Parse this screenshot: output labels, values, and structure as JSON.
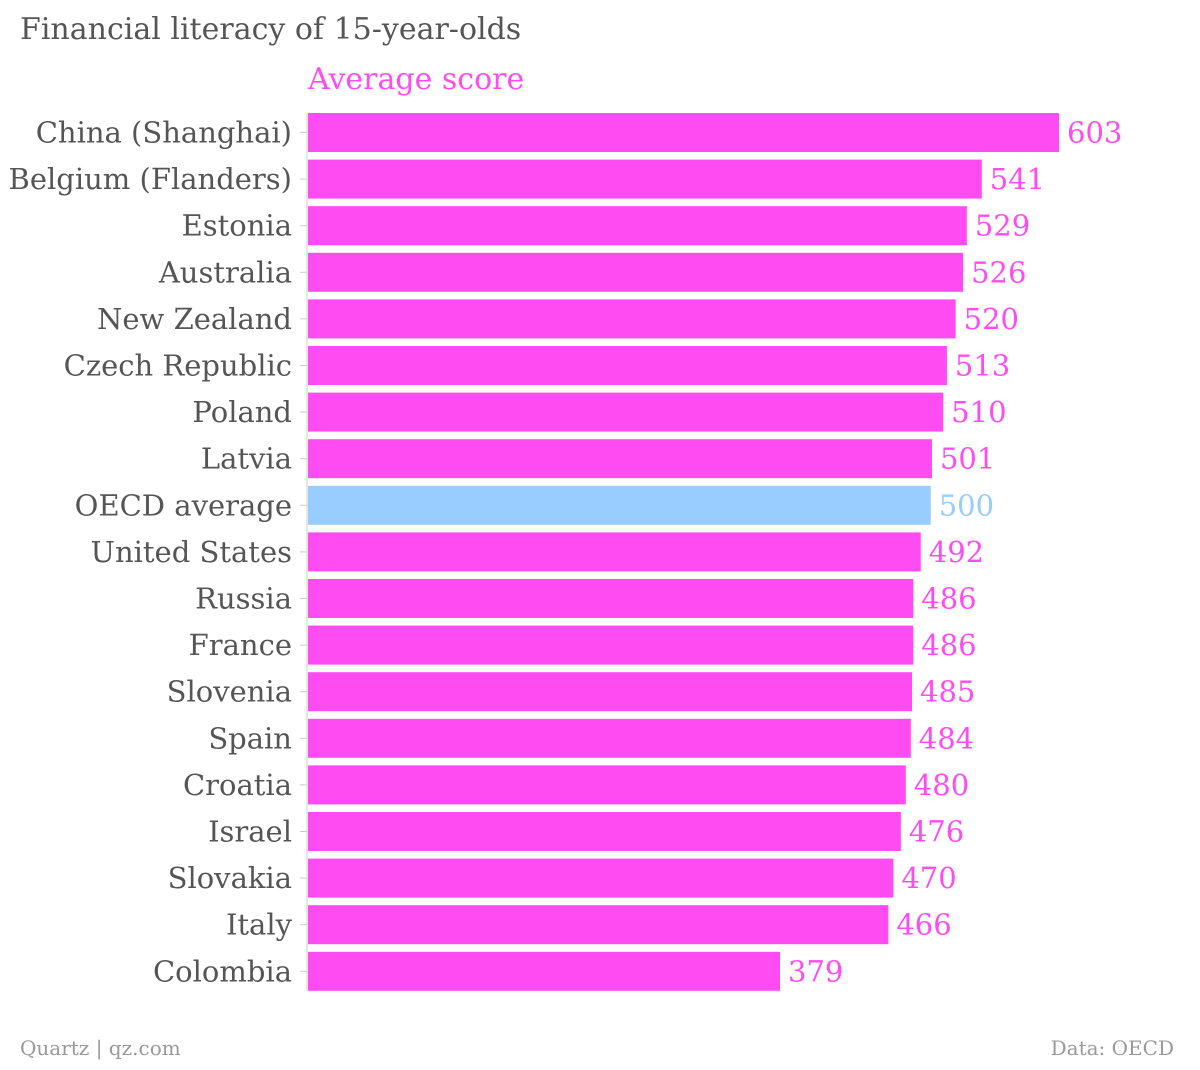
{
  "title": "Financial literacy of 15-year-olds",
  "series_label": "Average score",
  "colors": {
    "bar": "#ff4cf2",
    "highlight": "#99ccff",
    "axis": "#cccccc",
    "text": "#555555",
    "footer": "#999999"
  },
  "footer": {
    "source_left": "Quartz | qz.com",
    "source_right": "Data: OECD"
  },
  "chart_data": {
    "type": "bar",
    "orientation": "horizontal",
    "title": "Financial literacy of 15-year-olds",
    "series": [
      {
        "name": "Average score",
        "values": [
          603,
          541,
          529,
          526,
          520,
          513,
          510,
          501,
          500,
          492,
          486,
          486,
          485,
          484,
          480,
          476,
          470,
          466,
          379
        ]
      }
    ],
    "categories": [
      "China (Shanghai)",
      "Belgium (Flanders)",
      "Estonia",
      "Australia",
      "New Zealand",
      "Czech Republic",
      "Poland",
      "Latvia",
      "OECD average",
      "United States",
      "Russia",
      "France",
      "Slovenia",
      "Spain",
      "Croatia",
      "Israel",
      "Slovakia",
      "Italy",
      "Colombia"
    ],
    "highlight_category": "OECD average",
    "xlim": [
      0,
      603
    ],
    "grid": false,
    "legend": "none"
  }
}
